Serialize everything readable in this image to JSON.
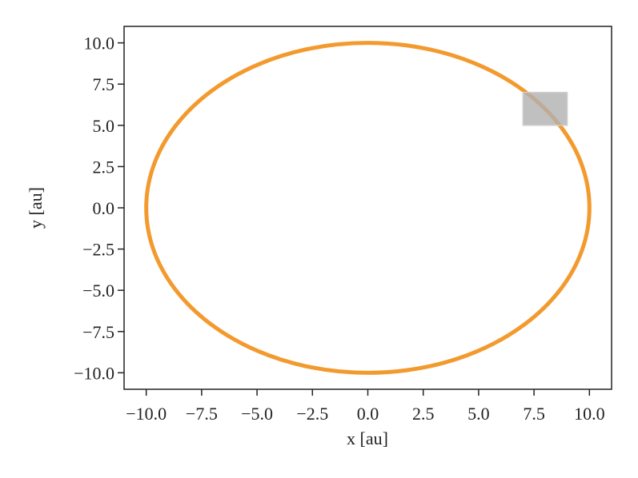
{
  "chart_data": {
    "type": "line",
    "xlabel": "x [au]",
    "ylabel": "y [au]",
    "xlim": [
      -11,
      11
    ],
    "ylim": [
      -11,
      11
    ],
    "xticks": [
      {
        "value": -10,
        "label": "−10.0"
      },
      {
        "value": -7.5,
        "label": "−7.5"
      },
      {
        "value": -5,
        "label": "−5.0"
      },
      {
        "value": -2.5,
        "label": "−2.5"
      },
      {
        "value": 0,
        "label": "0.0"
      },
      2.5,
      {
        "value": 5,
        "label": "5.0"
      },
      7.5,
      {
        "value": 10,
        "label": "10.0"
      }
    ],
    "yticks": [
      {
        "value": -10,
        "label": "−10.0"
      },
      {
        "value": -7.5,
        "label": "−7.5"
      },
      {
        "value": -5,
        "label": "−5.0"
      },
      {
        "value": -2.5,
        "label": "−2.5"
      },
      {
        "value": 0,
        "label": "0.0"
      },
      2.5,
      {
        "value": 5,
        "label": "5.0"
      },
      7.5,
      {
        "value": 10,
        "label": "10.0"
      }
    ],
    "series": [
      {
        "color": "#f39a2e",
        "x": [
          10,
          9.66,
          8.66,
          7.07,
          5,
          2.59,
          0,
          -2.59,
          -5,
          -7.07,
          -8.66,
          -9.66,
          -10,
          -9.66,
          -8.66,
          -7.07,
          -5,
          -2.59,
          0,
          2.59,
          5,
          7.07,
          8.66,
          9.66,
          10
        ],
        "values": [
          0,
          2.59,
          5,
          7.07,
          8.66,
          9.66,
          10,
          9.66,
          8.66,
          7.07,
          5,
          2.59,
          0,
          -2.59,
          -5,
          -7.07,
          -8.66,
          -9.66,
          -10,
          -9.66,
          -8.66,
          -7.07,
          -5,
          -2.59,
          0
        ]
      }
    ],
    "region": {
      "x": [
        7,
        9
      ],
      "y": [
        5,
        7
      ],
      "color": "#b0b0b0"
    }
  }
}
